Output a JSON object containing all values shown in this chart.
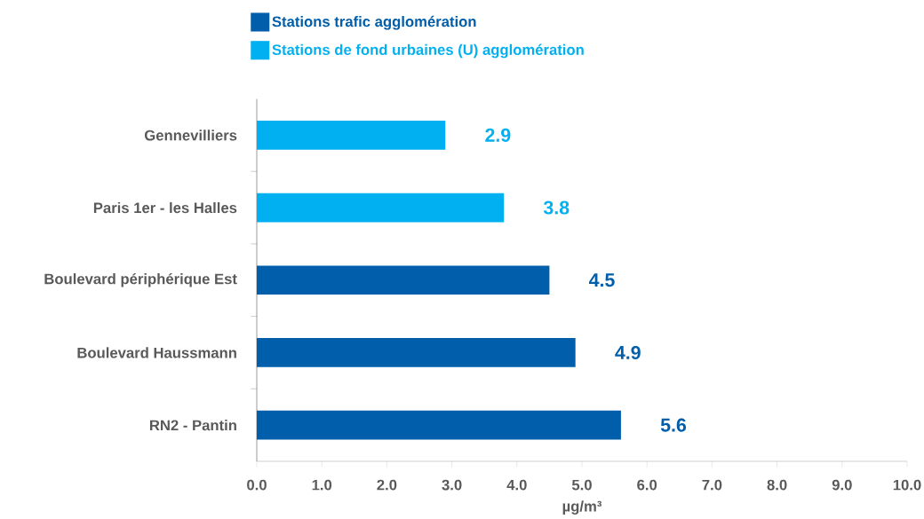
{
  "chart_data": {
    "type": "bar",
    "orientation": "horizontal",
    "categories": [
      "Gennevilliers",
      "Paris 1er - les Halles",
      "Boulevard périphérique Est",
      "Boulevard Haussmann",
      "RN2 - Pantin"
    ],
    "series": [
      {
        "name": "Stations trafic agglomération",
        "color": "#005eaa",
        "values": [
          null,
          null,
          4.5,
          4.9,
          5.6
        ]
      },
      {
        "name": "Stations de fond urbaines (U) agglomération",
        "color": "#00b0f0",
        "values": [
          2.9,
          3.8,
          null,
          null,
          null
        ]
      }
    ],
    "xlabel": "µg/m³",
    "xlim": [
      0,
      10
    ],
    "xticks": [
      {
        "value": 0,
        "label": "0.0"
      },
      {
        "value": 1,
        "label": "1.0"
      },
      {
        "value": 2,
        "label": "2.0"
      },
      {
        "value": 3,
        "label": "3.0"
      },
      {
        "value": 4,
        "label": "4.0"
      },
      {
        "value": 5,
        "label": "5.0"
      },
      {
        "value": 6,
        "label": "6.0"
      },
      {
        "value": 7,
        "label": "7.0"
      },
      {
        "value": 8,
        "label": "8.0"
      },
      {
        "value": 9,
        "label": "9.0"
      },
      {
        "value": 10,
        "label": "10.0"
      }
    ],
    "data_labels": true,
    "legend": "top left"
  }
}
